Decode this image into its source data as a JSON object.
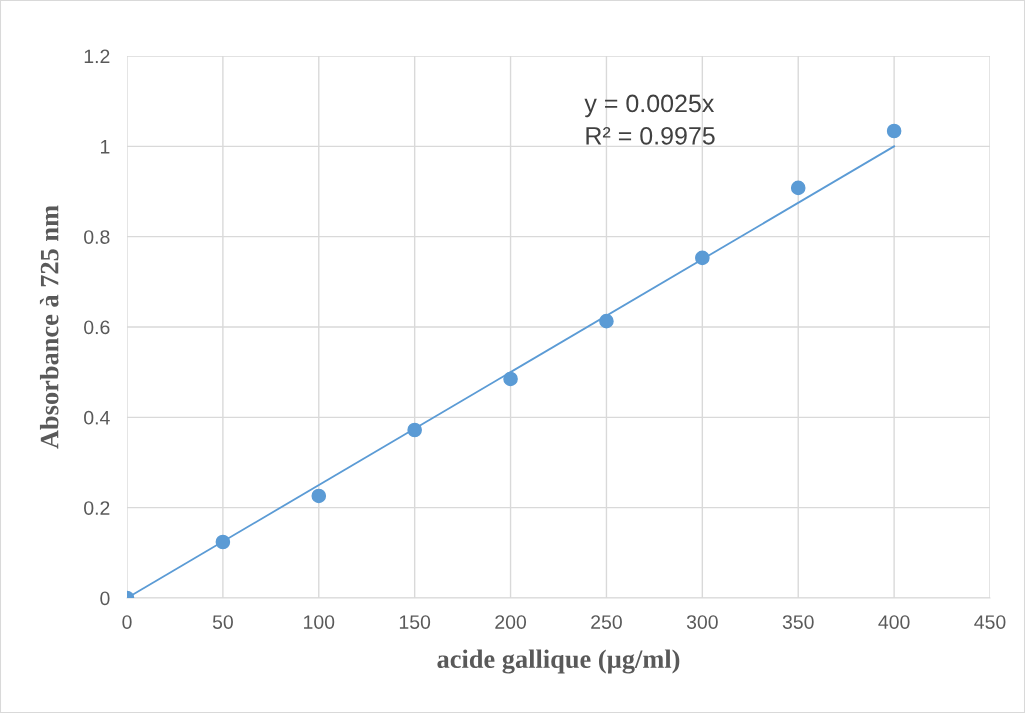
{
  "chart_data": {
    "type": "scatter",
    "xlabel": "acide gallique (µg/ml)",
    "ylabel": "Absorbance à 725 nm",
    "x": [
      0,
      50,
      100,
      150,
      200,
      250,
      300,
      350,
      400
    ],
    "series": [
      {
        "color": "#5b9bd5",
        "marker": "circle",
        "values": [
          0,
          0.124,
          0.226,
          0.372,
          0.485,
          0.613,
          0.753,
          0.908,
          1.034
        ]
      },
      {
        "type": "line",
        "color": "#5b9bd5",
        "x": [
          0,
          400
        ],
        "values": [
          0,
          1.0
        ],
        "line_style": "solid"
      }
    ],
    "annotations": [
      "y = 0.0025x\nR² = 0.9975"
    ],
    "xlim": [
      0,
      450
    ],
    "xticks": [
      0,
      50,
      100,
      150,
      200,
      250,
      300,
      350,
      400,
      450
    ],
    "ylim": [
      0,
      1.2
    ],
    "yticks": [
      0,
      0.2,
      0.4,
      0.6,
      0.8,
      1,
      1.2
    ],
    "grid": true,
    "legend": false
  }
}
